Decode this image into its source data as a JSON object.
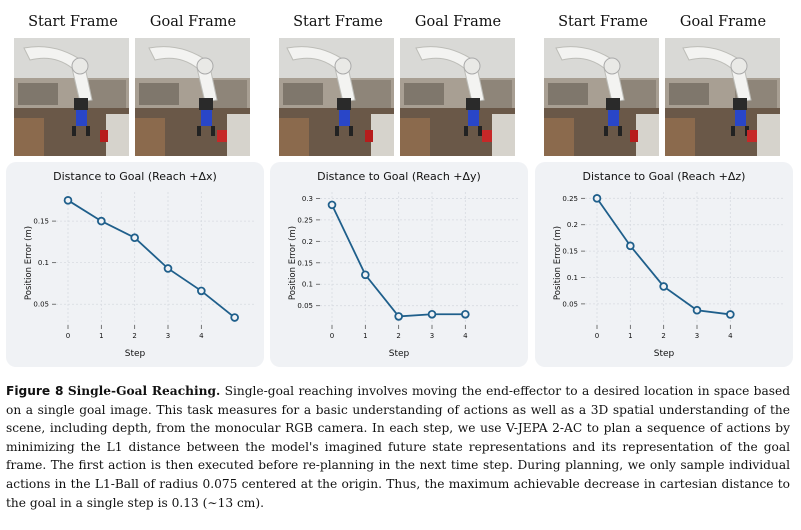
{
  "figure": {
    "groups": [
      {
        "start_label": "Start Frame",
        "goal_label": "Goal Frame"
      },
      {
        "start_label": "Start Frame",
        "goal_label": "Goal Frame"
      },
      {
        "start_label": "Start Frame",
        "goal_label": "Goal Frame"
      }
    ]
  },
  "chart_data": [
    {
      "type": "line",
      "title": "Distance to Goal (Reach +Δx)",
      "xlabel": "Step",
      "ylabel": "Position Error (m)",
      "x_ticks": [
        "0",
        "1",
        "2",
        "3",
        "4"
      ],
      "y_ticks": [
        "0.05",
        "0.1",
        "0.15"
      ],
      "ylim": [
        0.025,
        0.185
      ],
      "series": [
        {
          "x": [
            0,
            1,
            2,
            3,
            4,
            5
          ],
          "values": [
            0.175,
            0.15,
            0.13,
            0.093,
            0.066,
            0.034
          ]
        }
      ],
      "color": "#1f5f8b"
    },
    {
      "type": "line",
      "title": "Distance to Goal (Reach +Δy)",
      "xlabel": "Step",
      "ylabel": "Position Error (m)",
      "x_ticks": [
        "0",
        "1",
        "2",
        "3",
        "4"
      ],
      "y_ticks": [
        "0.05",
        "0.1",
        "0.15",
        "0.2",
        "0.25",
        "0.3"
      ],
      "ylim": [
        0.005,
        0.315
      ],
      "series": [
        {
          "x": [
            0,
            1,
            2,
            3,
            4
          ],
          "values": [
            0.285,
            0.122,
            0.025,
            0.03,
            0.03
          ]
        }
      ],
      "color": "#1f5f8b"
    },
    {
      "type": "line",
      "title": "Distance to Goal (Reach +Δz)",
      "xlabel": "Step",
      "ylabel": "Position Error (m)",
      "x_ticks": [
        "0",
        "1",
        "2",
        "3",
        "4"
      ],
      "y_ticks": [
        "0.05",
        "0.1",
        "0.15",
        "0.2",
        "0.25"
      ],
      "ylim": [
        0.01,
        0.262
      ],
      "series": [
        {
          "x": [
            0,
            1,
            2,
            3,
            4
          ],
          "values": [
            0.25,
            0.16,
            0.083,
            0.038,
            0.03
          ]
        }
      ],
      "color": "#1f5f8b"
    }
  ],
  "caption": {
    "label": "Figure 8",
    "title": "Single-Goal Reaching.",
    "body": "Single-goal reaching involves moving the end-effector to a desired location in space based on a single goal image. This task measures for a basic understanding of actions as well as a 3D spatial understanding of the scene, including depth, from the monocular RGB camera. In each step, we use V-JEPA 2-AC to plan a sequence of actions by minimizing the L1 distance between the model's imagined future state representations and its representation of the goal frame. The first action is then executed before re-planning in the next time step. During planning, we only sample individual actions in the L1-Ball of radius 0.075 centered at the origin. Thus, the maximum achievable decrease in cartesian distance to the goal in a single step is 0.13 (∼13 cm)."
  }
}
